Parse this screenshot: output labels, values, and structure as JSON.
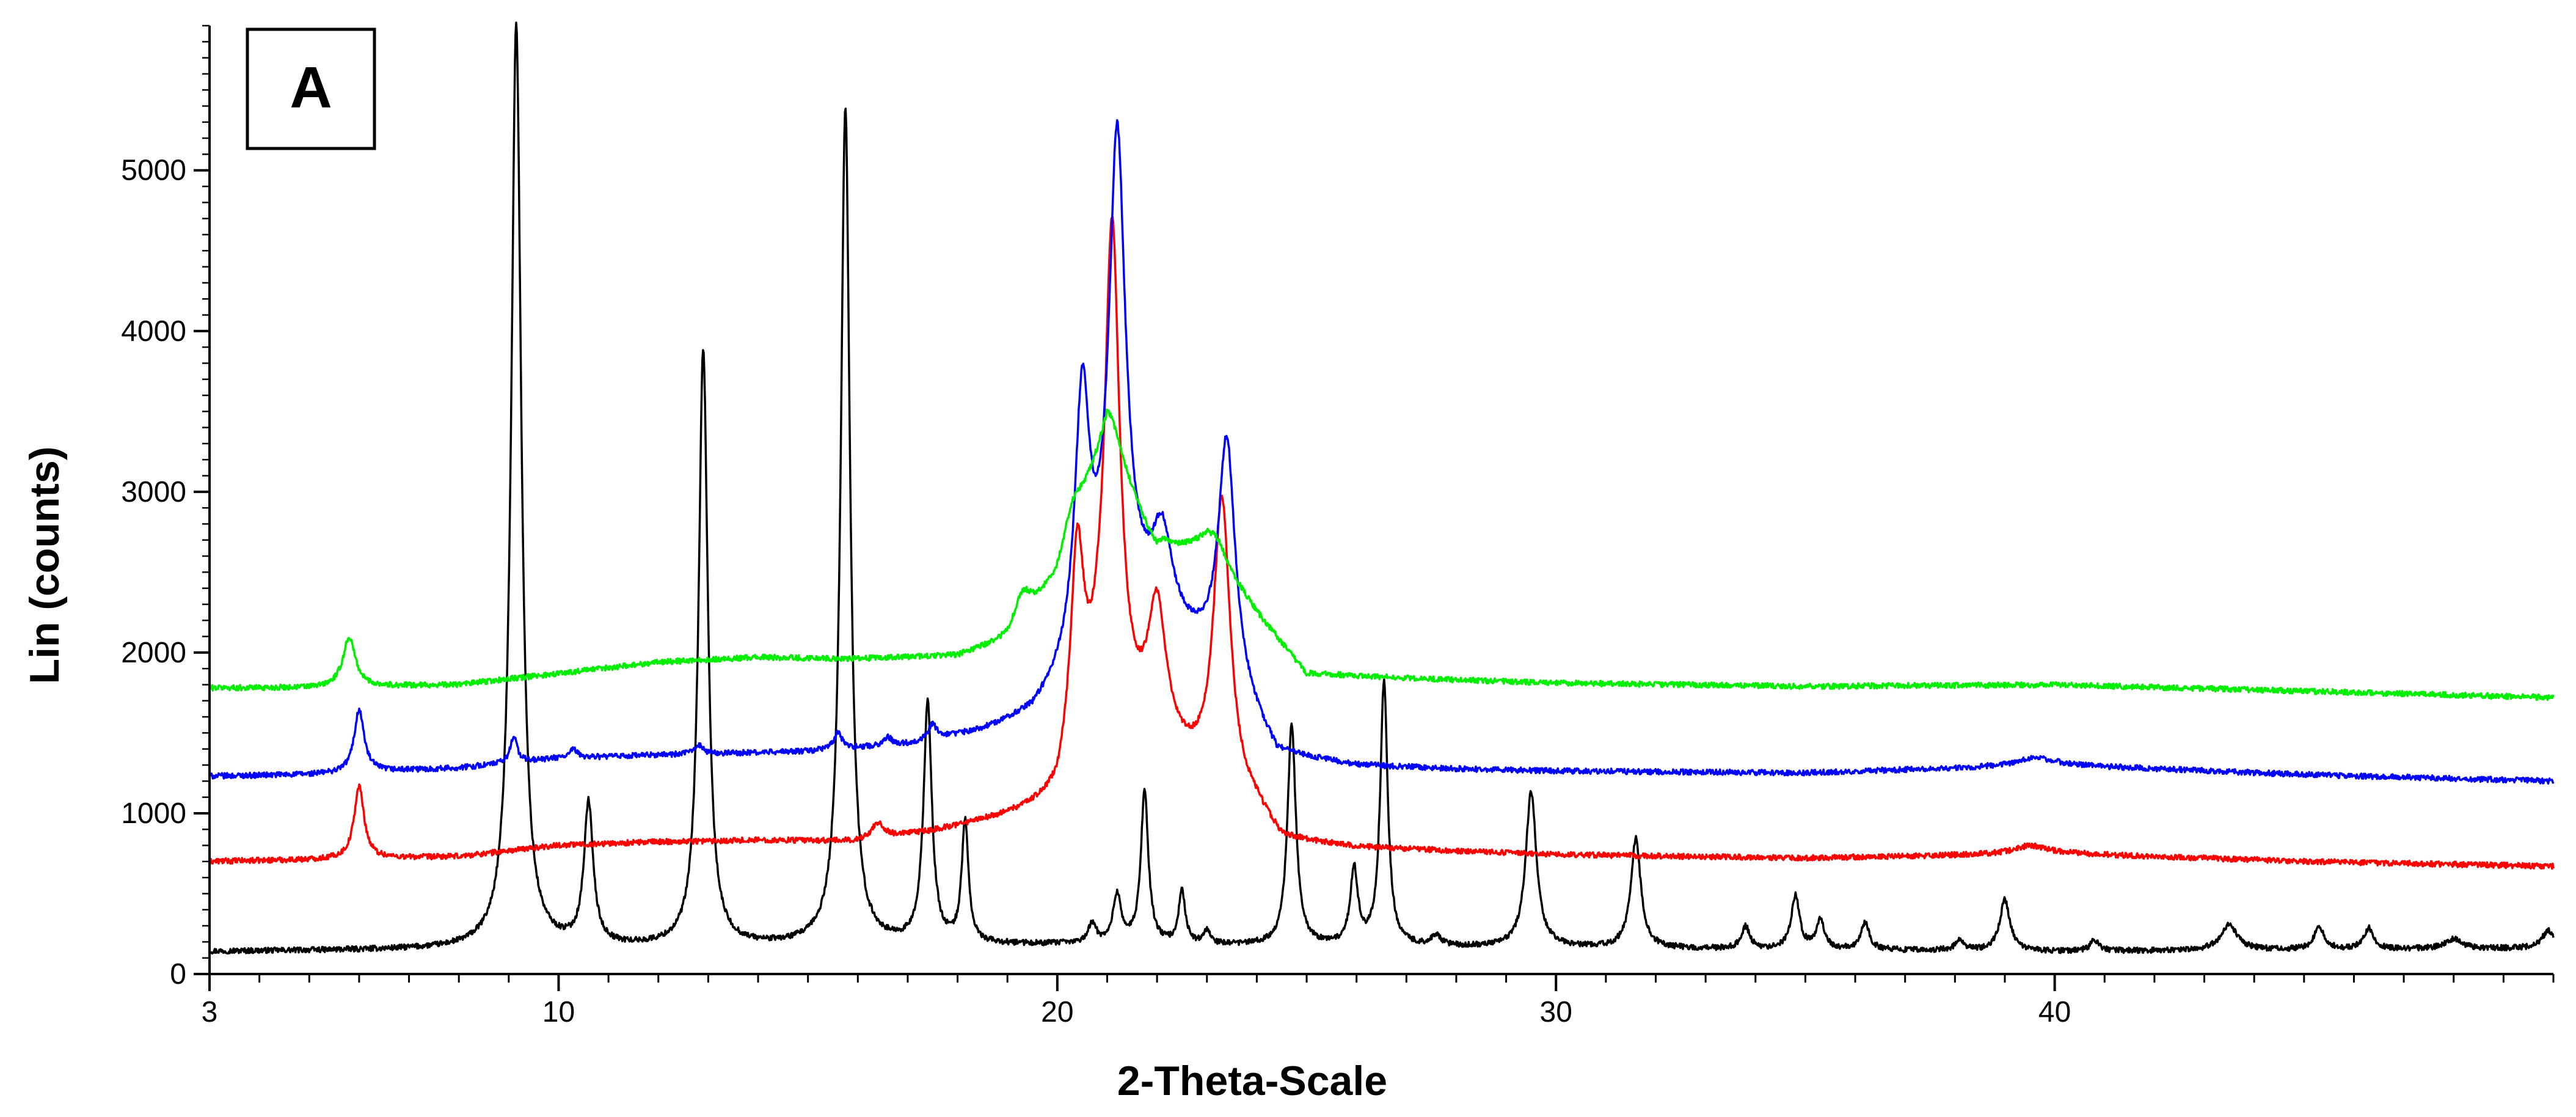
{
  "chart_data": {
    "type": "line",
    "panel_label": "A",
    "xlabel": "2-Theta-Scale",
    "ylabel": "Lin (counts)",
    "xlim": [
      3,
      50
    ],
    "ylim": [
      0,
      5900
    ],
    "x_ticks": [
      3,
      10,
      20,
      30,
      40
    ],
    "y_ticks": [
      0,
      1000,
      2000,
      3000,
      4000,
      5000
    ],
    "grid": false,
    "legend": "none",
    "series": [
      {
        "color": "#000000",
        "baseline": [
          [
            3,
            140
          ],
          [
            8,
            150
          ],
          [
            12,
            160
          ],
          [
            20,
            180
          ],
          [
            25,
            170
          ],
          [
            30,
            160
          ],
          [
            40,
            140
          ],
          [
            45,
            150
          ],
          [
            50,
            160
          ]
        ],
        "peaks": [
          [
            9.15,
            5750,
            0.12
          ],
          [
            10.6,
            880,
            0.11
          ],
          [
            12.9,
            3720,
            0.11
          ],
          [
            15.75,
            5220,
            0.11
          ],
          [
            17.4,
            1500,
            0.1
          ],
          [
            18.15,
            760,
            0.08
          ],
          [
            20.7,
            120,
            0.1
          ],
          [
            21.2,
            300,
            0.1
          ],
          [
            21.75,
            950,
            0.09
          ],
          [
            22.5,
            330,
            0.08
          ],
          [
            23.0,
            80,
            0.08
          ],
          [
            24.7,
            1380,
            0.1
          ],
          [
            25.95,
            470,
            0.09
          ],
          [
            26.55,
            1640,
            0.09
          ],
          [
            27.6,
            60,
            0.12
          ],
          [
            29.5,
            970,
            0.13
          ],
          [
            31.6,
            680,
            0.12
          ],
          [
            33.8,
            140,
            0.1
          ],
          [
            34.8,
            330,
            0.1
          ],
          [
            35.3,
            180,
            0.1
          ],
          [
            36.2,
            170,
            0.1
          ],
          [
            38.1,
            70,
            0.1
          ],
          [
            39.0,
            320,
            0.12
          ],
          [
            40.8,
            70,
            0.1
          ],
          [
            43.5,
            160,
            0.2
          ],
          [
            45.3,
            140,
            0.12
          ],
          [
            46.3,
            130,
            0.12
          ],
          [
            48.0,
            60,
            0.2
          ],
          [
            49.9,
            110,
            0.15
          ]
        ]
      },
      {
        "color": "#ff0000",
        "baseline": [
          [
            3,
            700
          ],
          [
            5,
            710
          ],
          [
            8,
            730
          ],
          [
            10,
            800
          ],
          [
            12,
            820
          ],
          [
            14,
            830
          ],
          [
            16,
            820
          ],
          [
            17.5,
            880
          ],
          [
            19,
            970
          ],
          [
            20,
            1050
          ],
          [
            20.8,
            1600
          ],
          [
            24,
            1000
          ],
          [
            24.5,
            820
          ],
          [
            26,
            780
          ],
          [
            28,
            760
          ],
          [
            30,
            740
          ],
          [
            35,
            720
          ],
          [
            40,
            750
          ],
          [
            45,
            700
          ],
          [
            50,
            670
          ]
        ],
        "peaks": [
          [
            6.0,
            450,
            0.12
          ],
          [
            16.4,
            100,
            0.15
          ],
          [
            20.4,
            1250,
            0.16
          ],
          [
            21.1,
            3050,
            0.18
          ],
          [
            22.0,
            850,
            0.22
          ],
          [
            23.3,
            1800,
            0.2
          ],
          [
            39.5,
            50,
            0.4
          ]
        ]
      },
      {
        "color": "#0000ff",
        "baseline": [
          [
            3,
            1230
          ],
          [
            5,
            1240
          ],
          [
            8,
            1280
          ],
          [
            10,
            1340
          ],
          [
            12,
            1360
          ],
          [
            15,
            1380
          ],
          [
            17,
            1420
          ],
          [
            18.5,
            1500
          ],
          [
            19.5,
            1600
          ],
          [
            20.3,
            1850
          ],
          [
            21.2,
            2300
          ],
          [
            23.3,
            1900
          ],
          [
            24.4,
            1350
          ],
          [
            26,
            1290
          ],
          [
            28,
            1270
          ],
          [
            30,
            1260
          ],
          [
            35,
            1250
          ],
          [
            40,
            1300
          ],
          [
            45,
            1240
          ],
          [
            50,
            1200
          ]
        ],
        "peaks": [
          [
            6.0,
            390,
            0.12
          ],
          [
            9.1,
            170,
            0.08
          ],
          [
            10.3,
            50,
            0.1
          ],
          [
            12.8,
            60,
            0.1
          ],
          [
            15.6,
            100,
            0.1
          ],
          [
            16.6,
            50,
            0.1
          ],
          [
            17.5,
            90,
            0.1
          ],
          [
            20.5,
            1600,
            0.18
          ],
          [
            21.2,
            2850,
            0.2
          ],
          [
            22.1,
            550,
            0.25
          ],
          [
            23.4,
            1450,
            0.2
          ],
          [
            39.6,
            50,
            0.4
          ]
        ]
      },
      {
        "color": "#00ee00",
        "baseline": [
          [
            3,
            1780
          ],
          [
            5,
            1780
          ],
          [
            8,
            1800
          ],
          [
            10,
            1870
          ],
          [
            12,
            1940
          ],
          [
            14,
            1970
          ],
          [
            16,
            1960
          ],
          [
            18,
            1980
          ],
          [
            19,
            2080
          ],
          [
            20,
            2450
          ],
          [
            21,
            3350
          ],
          [
            22,
            2600
          ],
          [
            23,
            2700
          ],
          [
            24,
            2250
          ],
          [
            25,
            1870
          ],
          [
            27,
            1840
          ],
          [
            30,
            1810
          ],
          [
            35,
            1790
          ],
          [
            40,
            1800
          ],
          [
            45,
            1760
          ],
          [
            50,
            1720
          ]
        ],
        "peaks": [
          [
            5.8,
            310,
            0.15
          ],
          [
            19.3,
            180,
            0.2
          ],
          [
            20.3,
            200,
            0.25
          ],
          [
            21.1,
            150,
            0.25
          ],
          [
            22.1,
            80,
            0.2
          ],
          [
            23.2,
            100,
            0.2
          ]
        ]
      }
    ]
  }
}
